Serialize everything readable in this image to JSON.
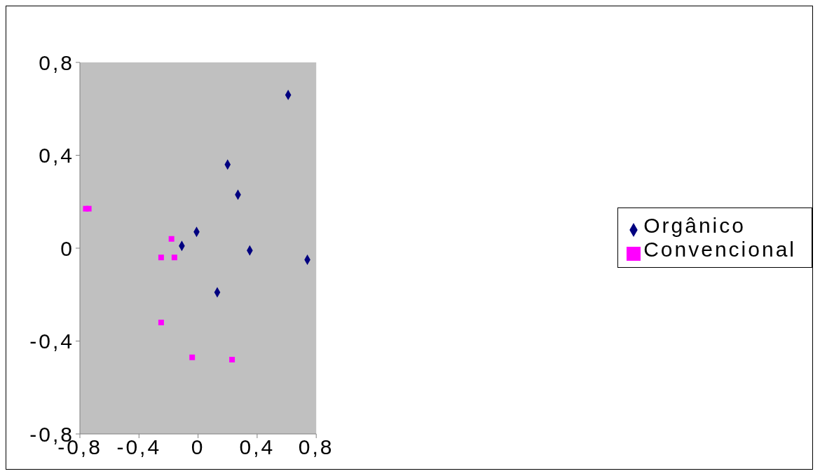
{
  "chart_data": {
    "type": "scatter",
    "xlim": [
      -0.8,
      0.8
    ],
    "ylim": [
      -0.8,
      0.8
    ],
    "xticks": [
      {
        "value": -0.8,
        "label": "-0,8"
      },
      {
        "value": -0.4,
        "label": "-0,4"
      },
      {
        "value": 0,
        "label": "0"
      },
      {
        "value": 0.4,
        "label": "0,4"
      },
      {
        "value": 0.8,
        "label": "0,8"
      }
    ],
    "yticks": [
      {
        "value": -0.8,
        "label": "-0,8"
      },
      {
        "value": -0.4,
        "label": "-0,4"
      },
      {
        "value": 0,
        "label": "0"
      },
      {
        "value": 0.4,
        "label": "0,4"
      },
      {
        "value": 0.8,
        "label": "0,8"
      }
    ],
    "grid": false,
    "legend": "right",
    "series": [
      {
        "name": "Orgânico",
        "color": "#000080",
        "marker": "diamond",
        "x": [
          0.61,
          0.2,
          0.27,
          -0.01,
          -0.11,
          0.35,
          0.74,
          0.13
        ],
        "values": [
          0.66,
          0.36,
          0.23,
          0.07,
          0.01,
          -0.01,
          -0.05,
          -0.19
        ]
      },
      {
        "name": "Convencional",
        "color": "#ff00ff",
        "marker": "square",
        "x": [
          -0.76,
          -0.74,
          -0.18,
          -0.25,
          -0.16,
          -0.25,
          -0.04,
          0.23
        ],
        "values": [
          0.17,
          0.17,
          0.04,
          -0.04,
          -0.04,
          -0.32,
          -0.47,
          -0.48
        ]
      }
    ]
  }
}
